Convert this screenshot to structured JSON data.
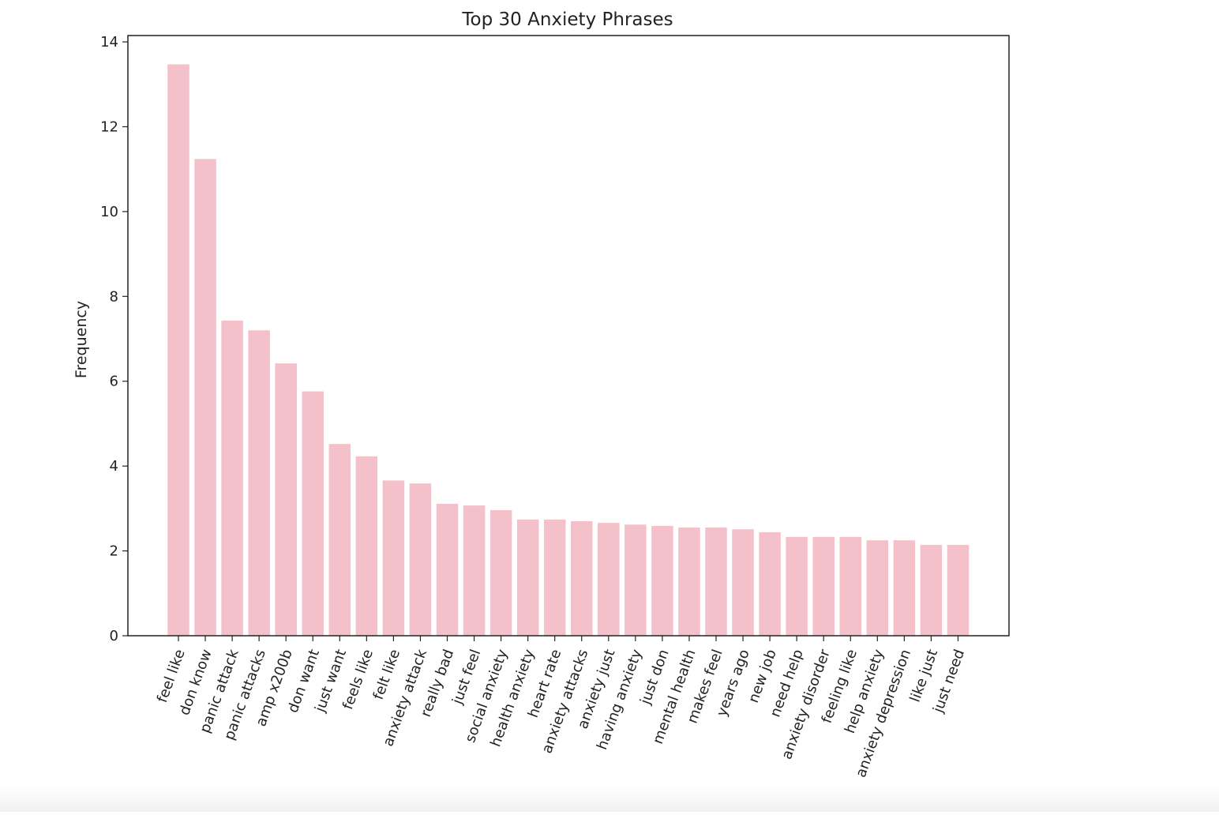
{
  "chart_data": {
    "type": "bar",
    "title": "Top 30 Anxiety Phrases",
    "xlabel": "",
    "ylabel": "Frequency",
    "ylim": [
      0,
      14.15
    ],
    "yticks": [
      0,
      2,
      4,
      6,
      8,
      10,
      12,
      14
    ],
    "grid": false,
    "bar_color": "#f4c0c9",
    "categories": [
      "feel like",
      "don know",
      "panic attack",
      "panic attacks",
      "amp x200b",
      "don want",
      "just want",
      "feels like",
      "felt like",
      "anxiety attack",
      "really bad",
      "just feel",
      "social anxiety",
      "health anxiety",
      "heart rate",
      "anxiety attacks",
      "anxiety just",
      "having anxiety",
      "just don",
      "mental health",
      "makes feel",
      "years ago",
      "new job",
      "need help",
      "anxiety disorder",
      "feeling like",
      "help anxiety",
      "anxiety depression",
      "like just",
      "just need"
    ],
    "values": [
      13.47,
      11.24,
      7.43,
      7.2,
      6.42,
      5.76,
      4.52,
      4.23,
      3.66,
      3.59,
      3.11,
      3.07,
      2.96,
      2.74,
      2.74,
      2.7,
      2.66,
      2.62,
      2.59,
      2.55,
      2.55,
      2.51,
      2.44,
      2.33,
      2.33,
      2.33,
      2.25,
      2.25,
      2.14,
      2.14
    ]
  }
}
